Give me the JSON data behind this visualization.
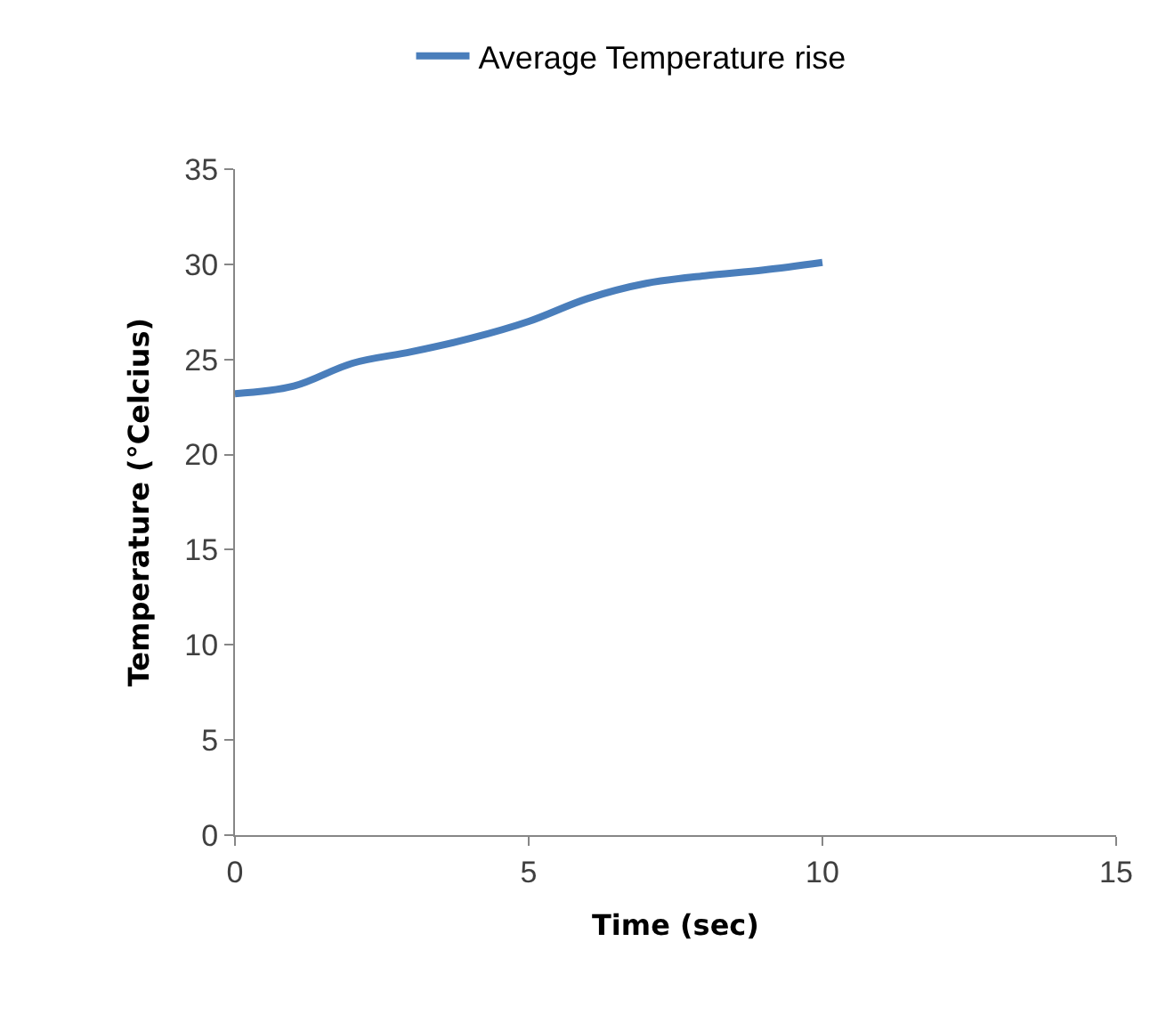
{
  "chart_data": {
    "type": "line",
    "xlabel": "Time (sec)",
    "ylabel": "Temperature (°Celcius)",
    "x": [
      0,
      1,
      2,
      3,
      4,
      5,
      6,
      7,
      8,
      9,
      10
    ],
    "series": [
      {
        "name": "Average Temperature rise",
        "color": "#4a7ebb",
        "values": [
          23.2,
          23.6,
          24.8,
          25.4,
          26.1,
          27.0,
          28.2,
          29.0,
          29.4,
          29.7,
          30.1
        ]
      }
    ],
    "xlim": [
      0,
      15
    ],
    "xticks": [
      0,
      5,
      10,
      15
    ],
    "ylim": [
      0,
      35
    ],
    "yticks": [
      0,
      5,
      10,
      15,
      20,
      25,
      30,
      35
    ],
    "legend": "top",
    "marker": "none",
    "line_style": "solid"
  }
}
